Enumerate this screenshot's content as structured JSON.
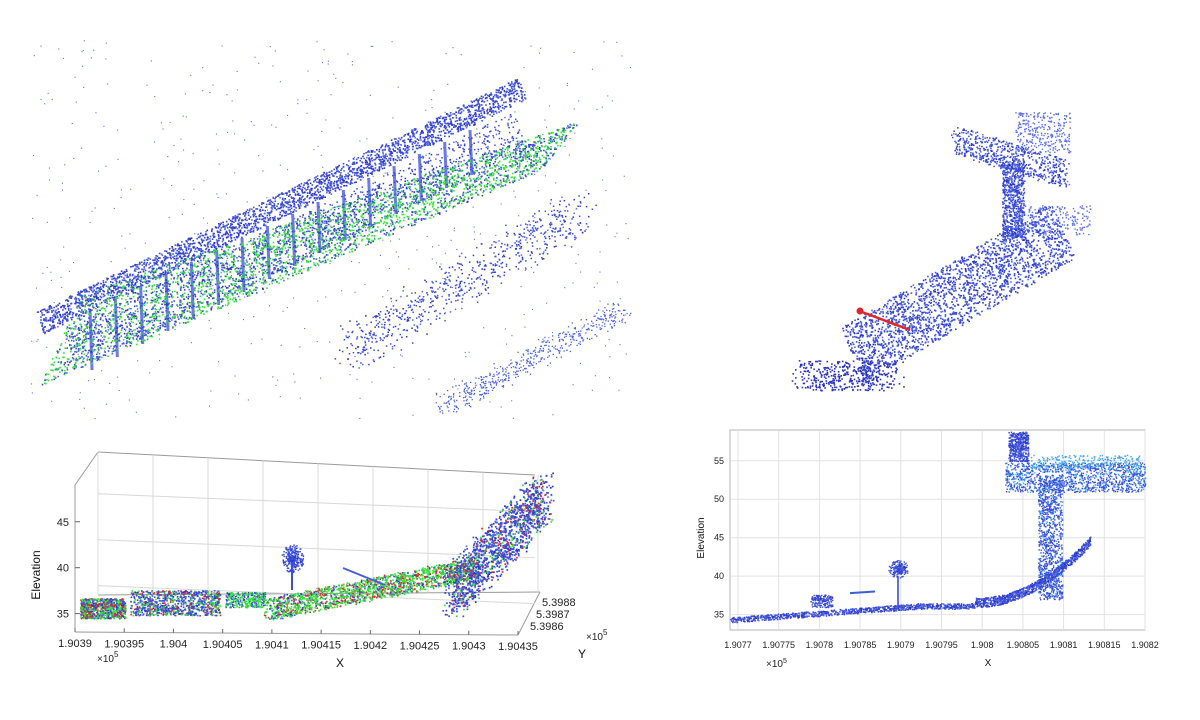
{
  "colors": {
    "blue": "#3a4fd8",
    "deep_blue": "#2a34c0",
    "green": "#33e23a",
    "red": "#e0262a",
    "light_blue": "#3fa6f0"
  },
  "chart_data": [
    {
      "type": "scatter",
      "title": "",
      "description_role": "3D point cloud, perspective view (highway overpass with vegetation)",
      "colormap": [
        "blue",
        "green"
      ],
      "axes_shown": false
    },
    {
      "type": "scatter",
      "title": "",
      "colormap": [
        "blue"
      ],
      "axes_shown": false,
      "annotation": "red arrow"
    },
    {
      "type": "scatter",
      "title": "",
      "xlabel": "X",
      "ylabel": "Y",
      "zlabel": "Elevation",
      "x_ticks": [
        "1.9039",
        "1.90395",
        "1.904",
        "1.90405",
        "1.9041",
        "1.90415",
        "1.9042",
        "1.90425",
        "1.9043",
        "1.90435"
      ],
      "x_exponent": "×10",
      "x_exponent_power": "5",
      "y_ticks": [
        "5.3988",
        "5.3987",
        "5.3986"
      ],
      "y_exponent": "×10",
      "y_exponent_power": "5",
      "z_ticks": [
        "45",
        "40",
        "35"
      ],
      "zlim": [
        33,
        49
      ],
      "grid": true,
      "colormap": [
        "blue",
        "green",
        "red"
      ]
    },
    {
      "type": "scatter",
      "title": "",
      "xlabel": "X",
      "ylabel": "Elevation",
      "x_ticks": [
        "1.9077",
        "1.90775",
        "1.9078",
        "1.90785",
        "1.9079",
        "1.90795",
        "1.908",
        "1.90805",
        "1.9081",
        "1.90815",
        "1.9082"
      ],
      "x_exponent": "×10",
      "x_exponent_power": "5",
      "y_ticks": [
        "55",
        "50",
        "45",
        "40",
        "35"
      ],
      "ylim": [
        33,
        59
      ],
      "grid": true,
      "colormap": [
        "blue",
        "light_blue"
      ]
    }
  ]
}
